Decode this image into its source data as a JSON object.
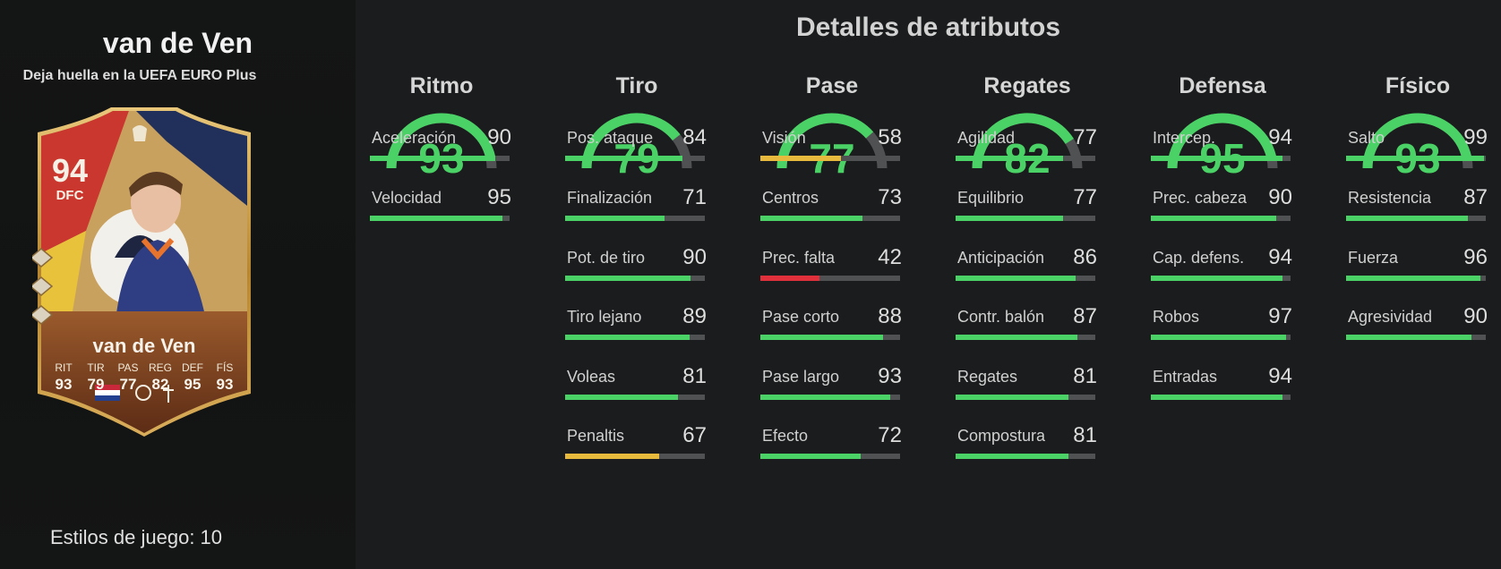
{
  "player": {
    "title": "van de Ven",
    "card_subtitle": "Deja huella en la UEFA EURO Plus",
    "playstyles": "Estilos de juego: 10"
  },
  "card": {
    "rating": "94",
    "position": "DFC",
    "name": "van de Ven",
    "stats": [
      {
        "label": "RIT",
        "value": "93"
      },
      {
        "label": "TIR",
        "value": "79"
      },
      {
        "label": "PAS",
        "value": "77"
      },
      {
        "label": "REG",
        "value": "82"
      },
      {
        "label": "DEF",
        "value": "95"
      },
      {
        "label": "FÍS",
        "value": "93"
      }
    ]
  },
  "main": {
    "title": "Detalles de atributos"
  },
  "colors": {
    "high": "#4bd266",
    "mid": "#e7b93c",
    "low": "#e0303c",
    "track": "#505152"
  },
  "categories": [
    {
      "name": "Ritmo",
      "value": 93,
      "stats": [
        {
          "label": "Aceleración",
          "value": 90
        },
        {
          "label": "Velocidad",
          "value": 95
        }
      ]
    },
    {
      "name": "Tiro",
      "value": 79,
      "stats": [
        {
          "label": "Pos. ataque",
          "value": 84
        },
        {
          "label": "Finalización",
          "value": 71
        },
        {
          "label": "Pot. de tiro",
          "value": 90
        },
        {
          "label": "Tiro lejano",
          "value": 89
        },
        {
          "label": "Voleas",
          "value": 81
        },
        {
          "label": "Penaltis",
          "value": 67
        }
      ]
    },
    {
      "name": "Pase",
      "value": 77,
      "stats": [
        {
          "label": "Visión",
          "value": 58
        },
        {
          "label": "Centros",
          "value": 73
        },
        {
          "label": "Prec. falta",
          "value": 42
        },
        {
          "label": "Pase corto",
          "value": 88
        },
        {
          "label": "Pase largo",
          "value": 93
        },
        {
          "label": "Efecto",
          "value": 72
        }
      ]
    },
    {
      "name": "Regates",
      "value": 82,
      "stats": [
        {
          "label": "Agilidad",
          "value": 77
        },
        {
          "label": "Equilibrio",
          "value": 77
        },
        {
          "label": "Anticipación",
          "value": 86
        },
        {
          "label": "Contr. balón",
          "value": 87
        },
        {
          "label": "Regates",
          "value": 81
        },
        {
          "label": "Compostura",
          "value": 81
        }
      ]
    },
    {
      "name": "Defensa",
      "value": 95,
      "stats": [
        {
          "label": "Intercep.",
          "value": 94
        },
        {
          "label": "Prec. cabeza",
          "value": 90
        },
        {
          "label": "Cap. defens.",
          "value": 94
        },
        {
          "label": "Robos",
          "value": 97
        },
        {
          "label": "Entradas",
          "value": 94
        }
      ]
    },
    {
      "name": "Físico",
      "value": 93,
      "stats": [
        {
          "label": "Salto",
          "value": 99
        },
        {
          "label": "Resistencia",
          "value": 87
        },
        {
          "label": "Fuerza",
          "value": 96
        },
        {
          "label": "Agresividad",
          "value": 90
        }
      ]
    }
  ]
}
